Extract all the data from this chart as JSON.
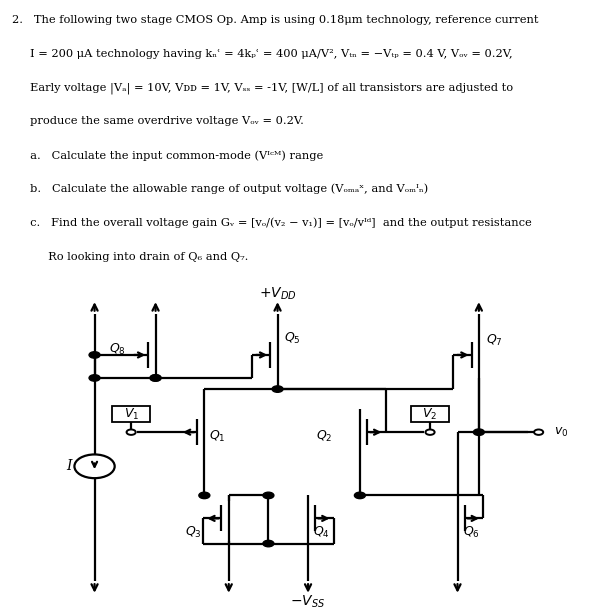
{
  "bg": "#ffffff",
  "lc": "#000000",
  "problem_lines": [
    "2.   The following two stage CMOS Op. Amp is using 0.18μm technology, reference current",
    "     I = 200 μA technology having kₙʿ = 4kₚʿ = 400 μA/V², Vₜₙ = −Vₜₚ = 0.4 V, Vₒᵥ = 0.2V,",
    "     Early voltage |Vₐ| = 10V, Vᴅᴅ = 1V, Vₛₛ = -1V, [W/L] of all transistors are adjusted to",
    "     produce the same overdrive voltage Vₒᵥ = 0.2V.",
    "     a.   Calculate the input common-mode (Vᴵᶜᴹ) range",
    "     b.   Calculate the allowable range of output voltage (Vₒₘₐˣ, and Vₒₘᴵₙ)",
    "     c.   Find the overall voltage gain Gᵥ = [vₒ/(v₂ − v₁)] = [vₒ/vᴵᵈ]  and the output resistance",
    "          Ro looking into drain of Q₆ and Q₇."
  ]
}
